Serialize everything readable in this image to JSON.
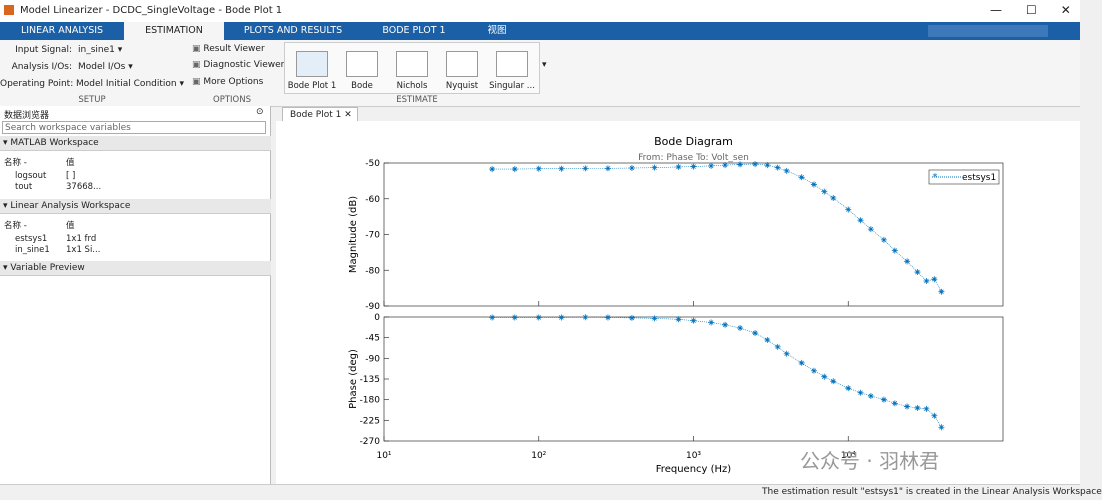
{
  "window": {
    "title": "Model Linearizer - DCDC_SingleVoltage - Bode Plot 1"
  },
  "tabs": [
    "LINEAR ANALYSIS",
    "ESTIMATION",
    "PLOTS AND RESULTS",
    "BODE PLOT 1",
    "视图"
  ],
  "setup": {
    "fields": [
      {
        "label": "Input Signal:",
        "value": "in_sine1"
      },
      {
        "label": "Analysis I/Os:",
        "value": "Model I/Os"
      },
      {
        "label": "Operating Point:",
        "value": "Model Initial Condition"
      }
    ],
    "section": "SETUP"
  },
  "options": {
    "items": [
      "Result Viewer",
      "Diagnostic Viewer",
      "More Options"
    ],
    "section": "OPTIONS"
  },
  "estimate": {
    "buttons": [
      "Bode Plot 1",
      "Bode",
      "Nichols",
      "Nyquist",
      "Singular ..."
    ],
    "section": "ESTIMATE"
  },
  "browser": {
    "title": "数据浏览器",
    "search": "Search workspace variables",
    "sections": [
      {
        "title": "MATLAB Workspace",
        "columns": [
          "名称 -",
          "值"
        ],
        "rows": [
          [
            "logsout",
            "[ ]"
          ],
          [
            "tout",
            "37668..."
          ]
        ]
      },
      {
        "title": "Linear Analysis Workspace",
        "columns": [
          "名称 -",
          "值"
        ],
        "rows": [
          [
            "estsys1",
            "1x1 frd"
          ],
          [
            "in_sine1",
            "1x1 Si..."
          ]
        ]
      },
      {
        "title": "Variable Preview"
      }
    ]
  },
  "document_tab": "Bode Plot 1",
  "chart_data": {
    "type": "line",
    "title": "Bode Diagram",
    "subtitle": "From: Phase  To: Volt_sen",
    "xlabel": "Frequency  (Hz)",
    "xscale": "log",
    "x": [
      50,
      70,
      100,
      140,
      200,
      280,
      400,
      560,
      800,
      1000,
      1300,
      1600,
      2000,
      2500,
      3000,
      3500,
      4000,
      5000,
      6000,
      7000,
      8000,
      10000,
      12000,
      14000,
      17000,
      20000,
      24000,
      28000,
      32000,
      36000,
      40000
    ],
    "xlim": [
      10,
      100000
    ],
    "xticks": [
      {
        "value": 10,
        "label": "10¹"
      },
      {
        "value": 100,
        "label": "10²"
      },
      {
        "value": 1000,
        "label": "10³"
      },
      {
        "value": 10000,
        "label": "10⁴"
      }
    ],
    "panels": [
      {
        "ylabel": "Magnitude (dB)",
        "ylim": [
          -90,
          -50
        ],
        "yticks": [
          -90,
          -80,
          -70,
          -60,
          -50
        ],
        "legend": "upper right",
        "series": [
          {
            "name": "estsys1",
            "color": "#0072bd",
            "values": [
              -51.7,
              -51.7,
              -51.6,
              -51.6,
              -51.5,
              -51.5,
              -51.4,
              -51.3,
              -51.1,
              -51.0,
              -50.8,
              -50.6,
              -50.4,
              -50.3,
              -50.6,
              -51.3,
              -52.2,
              -54.0,
              -56.0,
              -58.0,
              -59.8,
              -63.0,
              -66.0,
              -68.5,
              -71.5,
              -74.5,
              -77.5,
              -80.5,
              -83.0,
              -82.5,
              -86.0
            ]
          }
        ]
      },
      {
        "ylabel": "Phase (deg)",
        "ylim": [
          -270,
          0
        ],
        "yticks": [
          -270,
          -225,
          -180,
          -135,
          -90,
          -45,
          0
        ],
        "series": [
          {
            "color": "#0072bd",
            "values": [
              -1,
              -1,
              -1,
              -1,
              -0.5,
              -1,
              -2,
              -3,
              -5,
              -8,
              -12,
              -17,
              -24,
              -35,
              -50,
              -65,
              -80,
              -100,
              -117,
              -130,
              -140,
              -155,
              -165,
              -172,
              -180,
              -188,
              -195,
              -198,
              -200,
              -215,
              -240
            ]
          }
        ]
      }
    ]
  },
  "watermark": "公众号 · 羽林君",
  "status": "The estimation result \"estsys1\" is created in the Linear Analysis Workspace"
}
